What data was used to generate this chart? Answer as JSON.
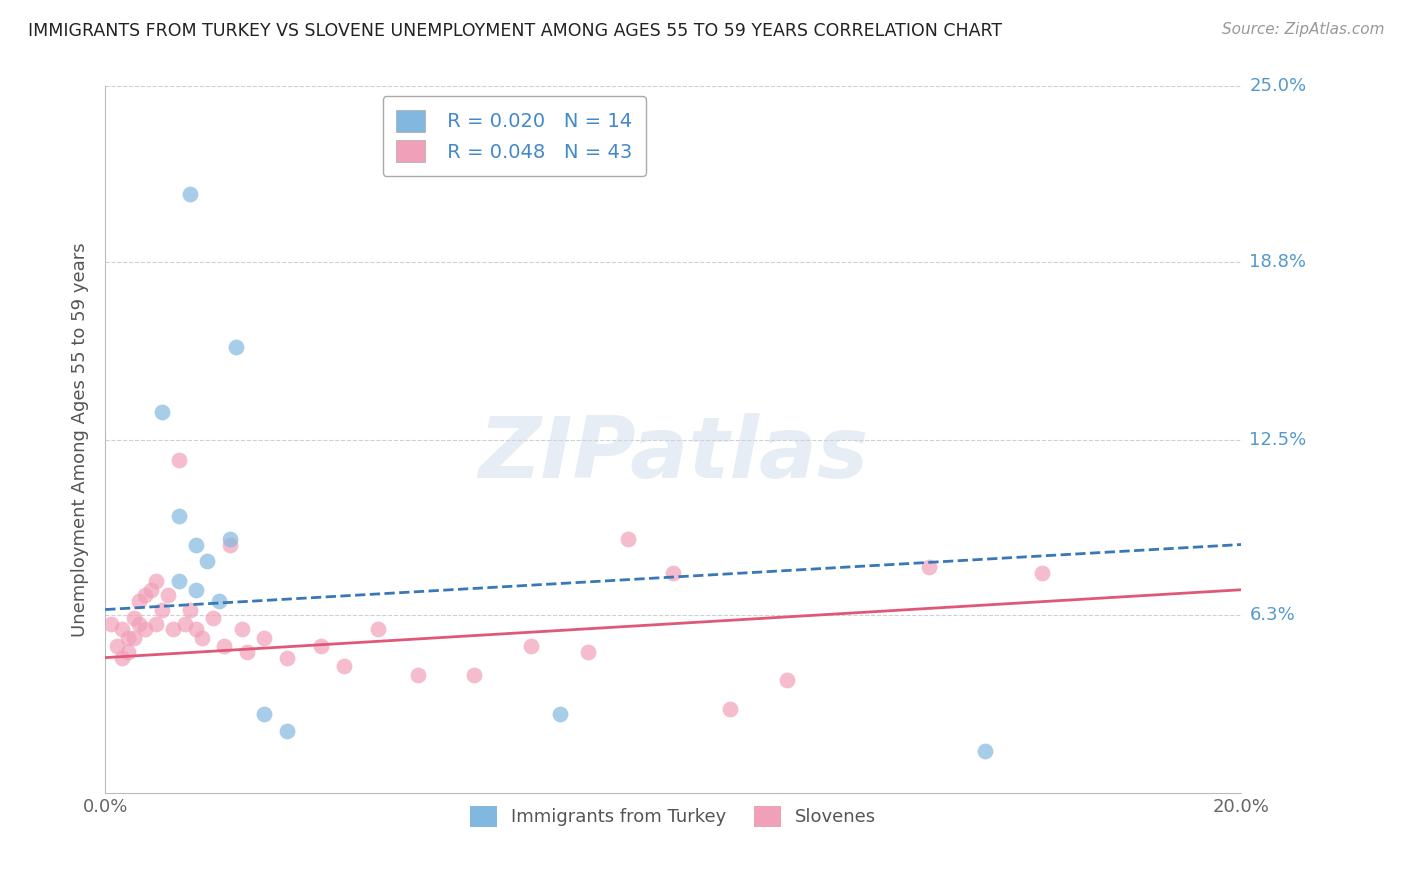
{
  "title": "IMMIGRANTS FROM TURKEY VS SLOVENE UNEMPLOYMENT AMONG AGES 55 TO 59 YEARS CORRELATION CHART",
  "source": "Source: ZipAtlas.com",
  "xlabel": "",
  "ylabel": "Unemployment Among Ages 55 to 59 years",
  "xlim": [
    0.0,
    0.2
  ],
  "ylim": [
    0.0,
    0.25
  ],
  "yticks": [
    0.0,
    0.063,
    0.125,
    0.188,
    0.25
  ],
  "ytick_labels": [
    "",
    "6.3%",
    "12.5%",
    "18.8%",
    "25.0%"
  ],
  "xtick_labels": [
    "0.0%",
    "20.0%"
  ],
  "grid_color": "#d0d0d0",
  "background_color": "#ffffff",
  "legend_R1": "R = 0.020",
  "legend_N1": "N = 14",
  "legend_R2": "R = 0.048",
  "legend_N2": "N = 43",
  "color_blue": "#82b8e0",
  "color_pink": "#f0a0b8",
  "color_blue_line": "#3878b8",
  "color_pink_line": "#e05878",
  "title_color": "#222222",
  "axis_label_color": "#555555",
  "right_label_color": "#5599cc",
  "turkey_points": [
    [
      0.015,
      0.212
    ],
    [
      0.023,
      0.158
    ],
    [
      0.01,
      0.135
    ],
    [
      0.013,
      0.098
    ],
    [
      0.016,
      0.088
    ],
    [
      0.018,
      0.082
    ],
    [
      0.013,
      0.075
    ],
    [
      0.016,
      0.072
    ],
    [
      0.02,
      0.068
    ],
    [
      0.022,
      0.09
    ],
    [
      0.028,
      0.028
    ],
    [
      0.032,
      0.022
    ],
    [
      0.08,
      0.028
    ],
    [
      0.155,
      0.015
    ]
  ],
  "slovene_points": [
    [
      0.001,
      0.06
    ],
    [
      0.002,
      0.052
    ],
    [
      0.003,
      0.058
    ],
    [
      0.003,
      0.048
    ],
    [
      0.004,
      0.055
    ],
    [
      0.004,
      0.05
    ],
    [
      0.005,
      0.062
    ],
    [
      0.005,
      0.055
    ],
    [
      0.006,
      0.068
    ],
    [
      0.006,
      0.06
    ],
    [
      0.007,
      0.07
    ],
    [
      0.007,
      0.058
    ],
    [
      0.008,
      0.072
    ],
    [
      0.009,
      0.075
    ],
    [
      0.009,
      0.06
    ],
    [
      0.01,
      0.065
    ],
    [
      0.011,
      0.07
    ],
    [
      0.012,
      0.058
    ],
    [
      0.013,
      0.118
    ],
    [
      0.014,
      0.06
    ],
    [
      0.015,
      0.065
    ],
    [
      0.016,
      0.058
    ],
    [
      0.017,
      0.055
    ],
    [
      0.019,
      0.062
    ],
    [
      0.021,
      0.052
    ],
    [
      0.024,
      0.058
    ],
    [
      0.025,
      0.05
    ],
    [
      0.028,
      0.055
    ],
    [
      0.032,
      0.048
    ],
    [
      0.038,
      0.052
    ],
    [
      0.042,
      0.045
    ],
    [
      0.048,
      0.058
    ],
    [
      0.055,
      0.042
    ],
    [
      0.065,
      0.042
    ],
    [
      0.075,
      0.052
    ],
    [
      0.085,
      0.05
    ],
    [
      0.092,
      0.09
    ],
    [
      0.1,
      0.078
    ],
    [
      0.11,
      0.03
    ],
    [
      0.12,
      0.04
    ],
    [
      0.145,
      0.08
    ],
    [
      0.165,
      0.078
    ],
    [
      0.022,
      0.088
    ]
  ],
  "turkey_trend": [
    0.065,
    0.088
  ],
  "slovene_trend": [
    0.048,
    0.072
  ]
}
